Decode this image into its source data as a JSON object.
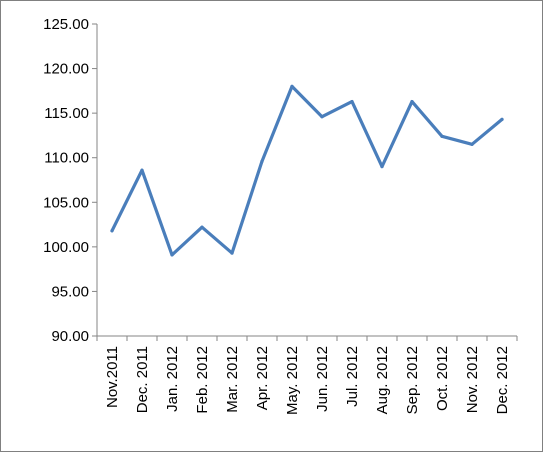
{
  "chart_data": {
    "type": "line",
    "categories": [
      "Nov.2011",
      "Dec. 2011",
      "Jan. 2012",
      "Feb. 2012",
      "Mar. 2012",
      "Apr. 2012",
      "May. 2012",
      "Jun. 2012",
      "Jul. 2012",
      "Aug. 2012",
      "Sep. 2012",
      "Oct. 2012",
      "Nov. 2012",
      "Dec. 2012"
    ],
    "series": [
      {
        "values": [
          101.8,
          108.6,
          99.1,
          102.2,
          99.3,
          109.6,
          118.0,
          114.6,
          116.3,
          109.0,
          116.3,
          112.4,
          111.5,
          114.3
        ],
        "color": "#4a7ebb"
      }
    ],
    "y_ticks": [
      "90.00",
      "95.00",
      "100.00",
      "105.00",
      "110.00",
      "115.00",
      "120.00",
      "125.00"
    ],
    "ylim": [
      90,
      125
    ],
    "title": "",
    "xlabel": "",
    "ylabel": "",
    "grid": false,
    "legend": "none"
  }
}
